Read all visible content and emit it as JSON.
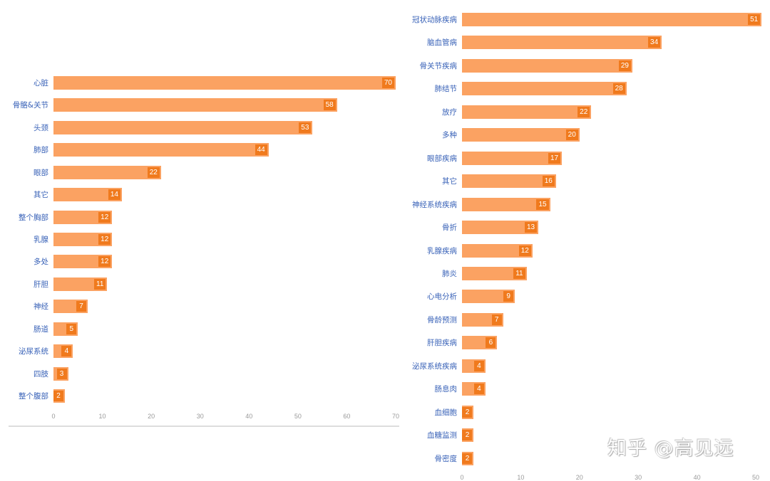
{
  "chart_data": [
    {
      "type": "bar",
      "orientation": "horizontal",
      "title": "",
      "xlabel": "",
      "ylabel": "",
      "xlim": [
        0,
        70
      ],
      "xticks": [
        0,
        10,
        20,
        30,
        40,
        50,
        60,
        70
      ],
      "grid": false,
      "legend": null,
      "categories": [
        "心脏",
        "骨骼&关节",
        "头颈",
        "肺部",
        "眼部",
        "其它",
        "整个胸部",
        "乳腺",
        "多处",
        "肝胆",
        "神经",
        "肠道",
        "泌尿系统",
        "四肢",
        "整个腹部"
      ],
      "values": [
        70,
        58,
        53,
        44,
        22,
        14,
        12,
        12,
        12,
        11,
        7,
        5,
        4,
        3,
        2
      ],
      "bar_color": "#fba262",
      "label_color": "#f07a1d"
    },
    {
      "type": "bar",
      "orientation": "horizontal",
      "title": "",
      "xlabel": "",
      "ylabel": "",
      "xlim": [
        0,
        50
      ],
      "xticks": [
        0,
        10,
        20,
        30,
        40,
        50
      ],
      "grid": false,
      "legend": null,
      "categories": [
        "冠状动脉疾病",
        "脑血管病",
        "骨关节疾病",
        "肺结节",
        "放疗",
        "多种",
        "眼部疾病",
        "其它",
        "神经系统疾病",
        "骨折",
        "乳腺疾病",
        "肺炎",
        "心电分析",
        "骨龄预测",
        "肝胆疾病",
        "泌尿系统疾病",
        "肠息肉",
        "血细胞",
        "血糖监测",
        "骨密度"
      ],
      "values": [
        51,
        34,
        29,
        28,
        22,
        20,
        17,
        16,
        15,
        13,
        12,
        11,
        9,
        7,
        6,
        4,
        4,
        2,
        2,
        2
      ],
      "bar_color": "#fba262",
      "label_color": "#f07a1d"
    }
  ],
  "watermark": "知乎 @高见远"
}
